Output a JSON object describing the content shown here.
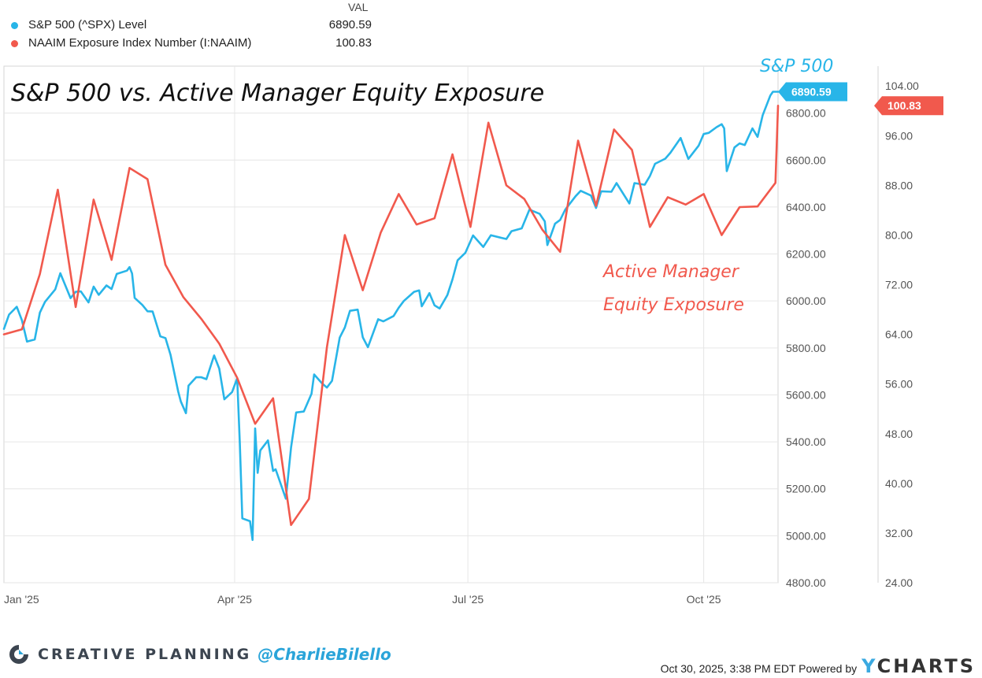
{
  "legend": {
    "header": "VAL",
    "items": [
      {
        "name": "S&P 500 (^SPX) Level",
        "value": "6890.59",
        "color": "#28b5e8"
      },
      {
        "name": "NAAIM Exposure Index Number (I:NAAIM)",
        "value": "100.83",
        "color": "#f1594d"
      }
    ]
  },
  "annotations": {
    "title": "S&P 500 vs. Active Manager Equity Exposure",
    "spx_label": "S&P 500",
    "naaim_label_line1": "Active Manager",
    "naaim_label_line2": "Equity Exposure"
  },
  "footer": {
    "brand": "CREATIVE PLANNING",
    "handle": "@CharlieBilello",
    "timestamp": "Oct 30, 2025, 3:38 PM EDT Powered by",
    "ycharts_y": "Y",
    "ycharts_rest": "CHARTS"
  },
  "chart_data": {
    "type": "line",
    "title": "S&P 500 vs. Active Manager Equity Exposure",
    "x_axis": {
      "type": "date",
      "range": [
        "2025-01-01",
        "2025-10-30"
      ],
      "tick_labels": [
        "Jan '25",
        "Apr '25",
        "Jul '25",
        "Oct '25"
      ],
      "tick_dates": [
        "2025-01-01",
        "2025-04-01",
        "2025-07-01",
        "2025-10-01"
      ]
    },
    "y_left": {
      "range": [
        4800,
        7000
      ],
      "ticks": [
        4800,
        5000,
        5200,
        5400,
        5600,
        5800,
        6000,
        6200,
        6400,
        6600,
        6800
      ],
      "tick_labels": [
        "4800.00",
        "5000.00",
        "5200.00",
        "5400.00",
        "5600.00",
        "5800.00",
        "6000.00",
        "6200.00",
        "6400.00",
        "6600.00",
        "6800.00"
      ]
    },
    "y_right": {
      "range": [
        24,
        107.2
      ],
      "ticks": [
        24,
        32,
        40,
        48,
        56,
        64,
        72,
        80,
        88,
        96,
        104
      ],
      "tick_labels": [
        "24.00",
        "32.00",
        "40.00",
        "48.00",
        "56.00",
        "64.00",
        "72.00",
        "80.00",
        "88.00",
        "96.00",
        "104.00"
      ]
    },
    "grid": true,
    "series": [
      {
        "name": "S&P 500 (^SPX) Level",
        "axis": "left",
        "color": "#28b5e8",
        "last_value_label": "6890.59",
        "points": [
          [
            "2025-01-01",
            5881
          ],
          [
            "2025-01-03",
            5942
          ],
          [
            "2025-01-06",
            5975
          ],
          [
            "2025-01-08",
            5918
          ],
          [
            "2025-01-10",
            5827
          ],
          [
            "2025-01-13",
            5836
          ],
          [
            "2025-01-15",
            5950
          ],
          [
            "2025-01-17",
            5996
          ],
          [
            "2025-01-21",
            6049
          ],
          [
            "2025-01-23",
            6118
          ],
          [
            "2025-01-27",
            6012
          ],
          [
            "2025-01-29",
            6039
          ],
          [
            "2025-01-31",
            6041
          ],
          [
            "2025-02-03",
            5994
          ],
          [
            "2025-02-05",
            6061
          ],
          [
            "2025-02-07",
            6026
          ],
          [
            "2025-02-10",
            6066
          ],
          [
            "2025-02-12",
            6051
          ],
          [
            "2025-02-14",
            6115
          ],
          [
            "2025-02-18",
            6129
          ],
          [
            "2025-02-19",
            6144
          ],
          [
            "2025-02-20",
            6117
          ],
          [
            "2025-02-21",
            6013
          ],
          [
            "2025-02-24",
            5983
          ],
          [
            "2025-02-26",
            5956
          ],
          [
            "2025-02-28",
            5955
          ],
          [
            "2025-03-03",
            5849
          ],
          [
            "2025-03-05",
            5842
          ],
          [
            "2025-03-07",
            5770
          ],
          [
            "2025-03-10",
            5614
          ],
          [
            "2025-03-11",
            5572
          ],
          [
            "2025-03-13",
            5522
          ],
          [
            "2025-03-14",
            5639
          ],
          [
            "2025-03-17",
            5675
          ],
          [
            "2025-03-19",
            5675
          ],
          [
            "2025-03-21",
            5667
          ],
          [
            "2025-03-24",
            5768
          ],
          [
            "2025-03-26",
            5712
          ],
          [
            "2025-03-28",
            5581
          ],
          [
            "2025-03-31",
            5612
          ],
          [
            "2025-04-02",
            5671
          ],
          [
            "2025-04-03",
            5397
          ],
          [
            "2025-04-04",
            5074
          ],
          [
            "2025-04-07",
            5062
          ],
          [
            "2025-04-08",
            4982
          ],
          [
            "2025-04-09",
            5457
          ],
          [
            "2025-04-10",
            5268
          ],
          [
            "2025-04-11",
            5363
          ],
          [
            "2025-04-14",
            5406
          ],
          [
            "2025-04-16",
            5276
          ],
          [
            "2025-04-17",
            5283
          ],
          [
            "2025-04-21",
            5158
          ],
          [
            "2025-04-23",
            5376
          ],
          [
            "2025-04-25",
            5525
          ],
          [
            "2025-04-28",
            5529
          ],
          [
            "2025-05-01",
            5605
          ],
          [
            "2025-05-02",
            5687
          ],
          [
            "2025-05-05",
            5650
          ],
          [
            "2025-05-07",
            5631
          ],
          [
            "2025-05-09",
            5660
          ],
          [
            "2025-05-12",
            5844
          ],
          [
            "2025-05-14",
            5887
          ],
          [
            "2025-05-16",
            5958
          ],
          [
            "2025-05-19",
            5963
          ],
          [
            "2025-05-21",
            5845
          ],
          [
            "2025-05-23",
            5803
          ],
          [
            "2025-05-27",
            5922
          ],
          [
            "2025-05-29",
            5913
          ],
          [
            "2025-06-02",
            5936
          ],
          [
            "2025-06-04",
            5971
          ],
          [
            "2025-06-06",
            6000
          ],
          [
            "2025-06-10",
            6039
          ],
          [
            "2025-06-12",
            6045
          ],
          [
            "2025-06-13",
            5977
          ],
          [
            "2025-06-16",
            6033
          ],
          [
            "2025-06-18",
            5981
          ],
          [
            "2025-06-20",
            5968
          ],
          [
            "2025-06-23",
            6025
          ],
          [
            "2025-06-25",
            6092
          ],
          [
            "2025-06-27",
            6173
          ],
          [
            "2025-06-30",
            6205
          ],
          [
            "2025-07-03",
            6279
          ],
          [
            "2025-07-07",
            6230
          ],
          [
            "2025-07-10",
            6280
          ],
          [
            "2025-07-14",
            6269
          ],
          [
            "2025-07-16",
            6264
          ],
          [
            "2025-07-18",
            6297
          ],
          [
            "2025-07-22",
            6309
          ],
          [
            "2025-07-25",
            6389
          ],
          [
            "2025-07-29",
            6371
          ],
          [
            "2025-07-31",
            6339
          ],
          [
            "2025-08-01",
            6238
          ],
          [
            "2025-08-04",
            6329
          ],
          [
            "2025-08-06",
            6345
          ],
          [
            "2025-08-08",
            6389
          ],
          [
            "2025-08-12",
            6446
          ],
          [
            "2025-08-14",
            6469
          ],
          [
            "2025-08-18",
            6449
          ],
          [
            "2025-08-20",
            6396
          ],
          [
            "2025-08-22",
            6467
          ],
          [
            "2025-08-26",
            6465
          ],
          [
            "2025-08-28",
            6502
          ],
          [
            "2025-09-02",
            6415
          ],
          [
            "2025-09-04",
            6502
          ],
          [
            "2025-09-08",
            6495
          ],
          [
            "2025-09-10",
            6532
          ],
          [
            "2025-09-12",
            6584
          ],
          [
            "2025-09-16",
            6606
          ],
          [
            "2025-09-18",
            6631
          ],
          [
            "2025-09-22",
            6694
          ],
          [
            "2025-09-25",
            6605
          ],
          [
            "2025-09-29",
            6661
          ],
          [
            "2025-10-01",
            6711
          ],
          [
            "2025-10-03",
            6716
          ],
          [
            "2025-10-06",
            6740
          ],
          [
            "2025-10-08",
            6753
          ],
          [
            "2025-10-09",
            6735
          ],
          [
            "2025-10-10",
            6553
          ],
          [
            "2025-10-13",
            6654
          ],
          [
            "2025-10-15",
            6671
          ],
          [
            "2025-10-17",
            6664
          ],
          [
            "2025-10-20",
            6735
          ],
          [
            "2025-10-22",
            6699
          ],
          [
            "2025-10-24",
            6791
          ],
          [
            "2025-10-27",
            6875
          ],
          [
            "2025-10-28",
            6891
          ],
          [
            "2025-10-30",
            6891
          ]
        ]
      },
      {
        "name": "NAAIM Exposure Index Number (I:NAAIM)",
        "axis": "right",
        "color": "#f1594d",
        "last_value_label": "100.83",
        "points": [
          [
            "2025-01-01",
            64.0
          ],
          [
            "2025-01-08",
            64.8
          ],
          [
            "2025-01-15",
            73.7
          ],
          [
            "2025-01-22",
            87.3
          ],
          [
            "2025-01-29",
            68.4
          ],
          [
            "2025-02-05",
            85.7
          ],
          [
            "2025-02-12",
            76.0
          ],
          [
            "2025-02-19",
            90.8
          ],
          [
            "2025-02-26",
            89.0
          ],
          [
            "2025-03-05",
            75.2
          ],
          [
            "2025-03-12",
            70.0
          ],
          [
            "2025-03-19",
            66.5
          ],
          [
            "2025-03-26",
            62.5
          ],
          [
            "2025-04-02",
            57.0
          ],
          [
            "2025-04-09",
            49.6
          ],
          [
            "2025-04-16",
            53.7
          ],
          [
            "2025-04-23",
            33.3
          ],
          [
            "2025-04-30",
            37.5
          ],
          [
            "2025-05-07",
            61.9
          ],
          [
            "2025-05-14",
            80.0
          ],
          [
            "2025-05-21",
            71.1
          ],
          [
            "2025-05-28",
            80.4
          ],
          [
            "2025-06-04",
            86.6
          ],
          [
            "2025-06-11",
            81.7
          ],
          [
            "2025-06-18",
            82.7
          ],
          [
            "2025-06-25",
            93.0
          ],
          [
            "2025-07-02",
            81.3
          ],
          [
            "2025-07-09",
            98.1
          ],
          [
            "2025-07-16",
            88.0
          ],
          [
            "2025-07-23",
            85.8
          ],
          [
            "2025-07-30",
            80.9
          ],
          [
            "2025-08-06",
            77.3
          ],
          [
            "2025-08-13",
            95.2
          ],
          [
            "2025-08-20",
            84.7
          ],
          [
            "2025-08-27",
            97.0
          ],
          [
            "2025-09-03",
            93.7
          ],
          [
            "2025-09-10",
            81.3
          ],
          [
            "2025-09-17",
            86.1
          ],
          [
            "2025-09-24",
            84.9
          ],
          [
            "2025-10-01",
            86.6
          ],
          [
            "2025-10-08",
            80.0
          ],
          [
            "2025-10-15",
            84.5
          ],
          [
            "2025-10-22",
            84.6
          ],
          [
            "2025-10-29",
            88.4
          ],
          [
            "2025-10-30",
            100.83
          ]
        ]
      }
    ]
  }
}
